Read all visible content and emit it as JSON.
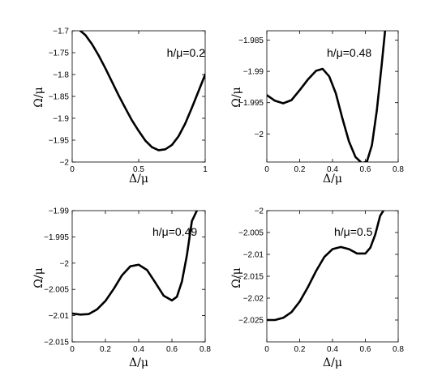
{
  "chart_data": [
    {
      "type": "line",
      "annotation": "h/μ=0.2",
      "xlabel": "Δ/μ",
      "ylabel": "Ω/μ",
      "xlim": [
        0,
        1
      ],
      "ylim": [
        -2.0,
        -1.7
      ],
      "xticks": [
        0,
        0.5,
        1
      ],
      "yticks": [
        -1.7,
        -1.75,
        -1.8,
        -1.85,
        -1.9,
        -1.95,
        -2.0
      ],
      "x": [
        0,
        0.05,
        0.1,
        0.15,
        0.2,
        0.25,
        0.3,
        0.35,
        0.4,
        0.45,
        0.5,
        0.55,
        0.6,
        0.65,
        0.7,
        0.75,
        0.8,
        0.85,
        0.9,
        0.95,
        1.0
      ],
      "y": [
        -1.692,
        -1.697,
        -1.71,
        -1.731,
        -1.757,
        -1.786,
        -1.817,
        -1.848,
        -1.877,
        -1.905,
        -1.929,
        -1.951,
        -1.966,
        -1.973,
        -1.971,
        -1.961,
        -1.941,
        -1.912,
        -1.876,
        -1.838,
        -1.8
      ]
    },
    {
      "type": "line",
      "annotation": "h/μ=0.48",
      "xlabel": "Δ/μ",
      "ylabel": "Ω/μ",
      "xlim": [
        0,
        0.8
      ],
      "ylim": [
        -2.0045,
        -1.9835
      ],
      "xticks": [
        0,
        0.2,
        0.4,
        0.6,
        0.8
      ],
      "yticks": [
        -1.985,
        -1.99,
        -1.995,
        -2.0
      ],
      "x": [
        0,
        0.05,
        0.1,
        0.15,
        0.2,
        0.25,
        0.3,
        0.34,
        0.38,
        0.42,
        0.46,
        0.5,
        0.54,
        0.58,
        0.61,
        0.64,
        0.67,
        0.7,
        0.72,
        0.74
      ],
      "y": [
        -1.9938,
        -1.9947,
        -1.9951,
        -1.9946,
        -1.993,
        -1.9913,
        -1.9899,
        -1.9896,
        -1.9908,
        -1.9935,
        -1.9975,
        -2.0012,
        -2.0037,
        -2.0047,
        -2.0044,
        -2.0018,
        -1.9962,
        -1.9888,
        -1.9835,
        -1.978
      ]
    },
    {
      "type": "line",
      "annotation": "h/μ=0.49",
      "xlabel": "Δ/μ",
      "ylabel": "Ω/μ",
      "xlim": [
        0,
        0.8
      ],
      "ylim": [
        -2.015,
        -1.99
      ],
      "xticks": [
        0,
        0.2,
        0.4,
        0.6,
        0.8
      ],
      "yticks": [
        -1.99,
        -1.995,
        -2.0,
        -2.005,
        -2.01,
        -2.015
      ],
      "x": [
        0,
        0.05,
        0.1,
        0.15,
        0.2,
        0.25,
        0.3,
        0.35,
        0.4,
        0.45,
        0.5,
        0.55,
        0.6,
        0.63,
        0.66,
        0.69,
        0.72,
        0.75
      ],
      "y": [
        -2.0096,
        -2.0098,
        -2.0097,
        -2.0088,
        -2.0072,
        -2.0049,
        -2.0023,
        -2.0006,
        -2.0003,
        -2.0013,
        -2.0037,
        -2.0062,
        -2.0071,
        -2.0064,
        -2.0035,
        -1.9985,
        -1.992,
        -1.99
      ]
    },
    {
      "type": "line",
      "annotation": "h/μ=0.5",
      "xlabel": "Δ/μ",
      "ylabel": "Ω/μ",
      "xlim": [
        0,
        0.8
      ],
      "ylim": [
        -2.03,
        -2.0
      ],
      "xticks": [
        0,
        0.2,
        0.4,
        0.6,
        0.8
      ],
      "yticks": [
        -2.0,
        -2.005,
        -2.01,
        -2.015,
        -2.02,
        -2.025
      ],
      "x": [
        0,
        0.05,
        0.1,
        0.15,
        0.2,
        0.25,
        0.3,
        0.35,
        0.4,
        0.45,
        0.5,
        0.55,
        0.6,
        0.63,
        0.66,
        0.69,
        0.71
      ],
      "y": [
        -2.025,
        -2.025,
        -2.0245,
        -2.0232,
        -2.0208,
        -2.0175,
        -2.0138,
        -2.0106,
        -2.0088,
        -2.0083,
        -2.0088,
        -2.0098,
        -2.0098,
        -2.0085,
        -2.0055,
        -2.0012,
        -2.0
      ]
    }
  ]
}
